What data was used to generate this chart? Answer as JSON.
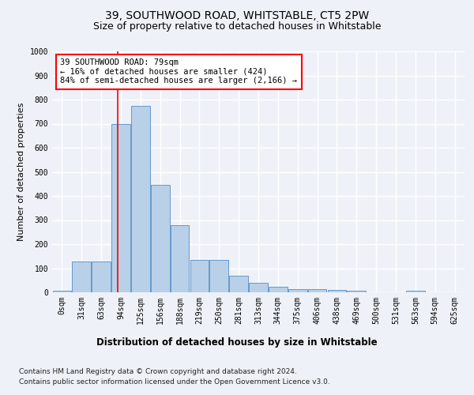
{
  "title": "39, SOUTHWOOD ROAD, WHITSTABLE, CT5 2PW",
  "subtitle": "Size of property relative to detached houses in Whitstable",
  "xlabel": "Distribution of detached houses by size in Whitstable",
  "ylabel": "Number of detached properties",
  "footnote1": "Contains HM Land Registry data © Crown copyright and database right 2024.",
  "footnote2": "Contains public sector information licensed under the Open Government Licence v3.0.",
  "bar_labels": [
    "0sqm",
    "31sqm",
    "63sqm",
    "94sqm",
    "125sqm",
    "156sqm",
    "188sqm",
    "219sqm",
    "250sqm",
    "281sqm",
    "313sqm",
    "344sqm",
    "375sqm",
    "406sqm",
    "438sqm",
    "469sqm",
    "500sqm",
    "531sqm",
    "563sqm",
    "594sqm",
    "625sqm"
  ],
  "bar_values": [
    5,
    128,
    128,
    700,
    775,
    445,
    278,
    135,
    135,
    70,
    40,
    22,
    12,
    12,
    10,
    5,
    0,
    0,
    8,
    0,
    0
  ],
  "bar_color": "#b8d0e8",
  "bar_edgecolor": "#6699cc",
  "bar_linewidth": 0.7,
  "vline_color": "red",
  "vline_linewidth": 1.2,
  "vline_pos": 2.85,
  "annotation_text": "39 SOUTHWOOD ROAD: 79sqm\n← 16% of detached houses are smaller (424)\n84% of semi-detached houses are larger (2,166) →",
  "annotation_box_facecolor": "white",
  "annotation_box_edgecolor": "red",
  "ylim": [
    0,
    1000
  ],
  "yticks": [
    0,
    100,
    200,
    300,
    400,
    500,
    600,
    700,
    800,
    900,
    1000
  ],
  "background_color": "#eef2f8",
  "grid_color": "white",
  "title_fontsize": 10,
  "subtitle_fontsize": 9,
  "ylabel_fontsize": 8,
  "xlabel_fontsize": 8.5,
  "tick_fontsize": 7,
  "annotation_fontsize": 7.5,
  "footnote_fontsize": 6.5
}
